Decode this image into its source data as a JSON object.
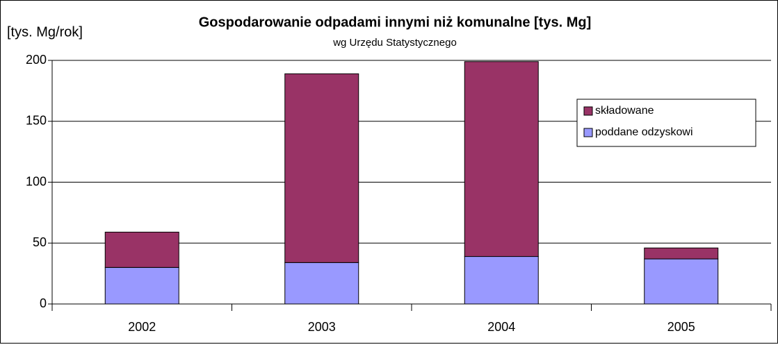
{
  "chart_data": {
    "type": "stacked_bar",
    "title": "Gospodarowanie odpadami innymi niż komunalne [tys. Mg]",
    "subtitle": "wg Urzędu Statystycznego",
    "y_label": "[tys. Mg/rok]",
    "categories": [
      "2002",
      "2003",
      "2004",
      "2005"
    ],
    "series": [
      {
        "name": "poddane odzyskowi",
        "color": "#9999ff",
        "values": [
          30,
          34,
          39,
          37
        ]
      },
      {
        "name": "składowane",
        "color": "#993366",
        "values": [
          29,
          155,
          160,
          9
        ]
      }
    ],
    "ylim": [
      0,
      200
    ],
    "yticks": [
      0,
      50,
      100,
      150,
      200
    ],
    "grid": true,
    "legend": "upper right"
  }
}
